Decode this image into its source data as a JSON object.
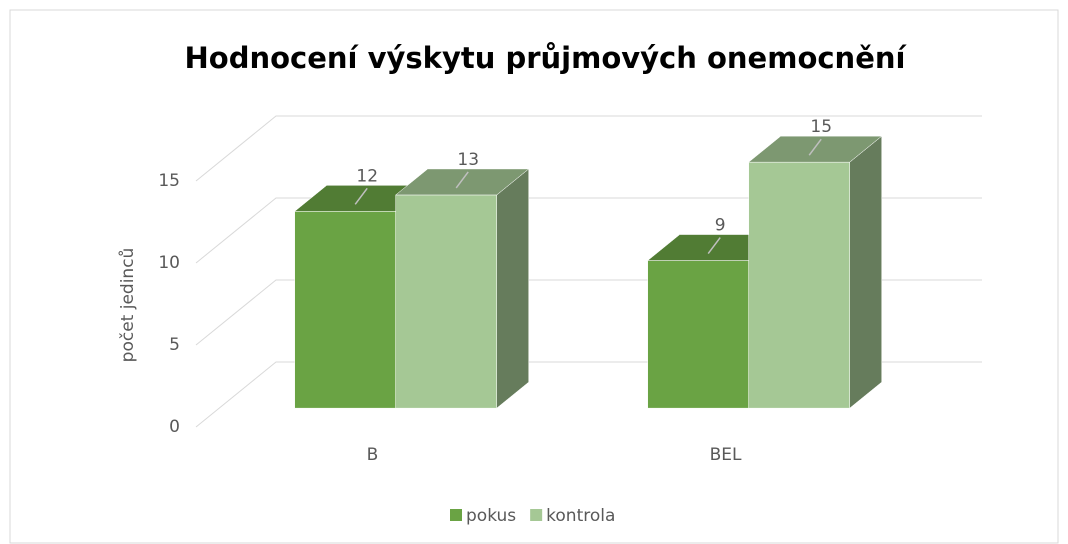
{
  "chart_data": {
    "type": "bar3d",
    "title": "Hodnocení výskytu průjmových onemocnění",
    "y_label": "počet jedinců",
    "categories": [
      "B",
      "BEL"
    ],
    "series": [
      {
        "name": "pokus",
        "color": "#6aa344",
        "values": [
          12,
          9
        ]
      },
      {
        "name": "kontrola",
        "color": "#a5c895",
        "values": [
          13,
          15
        ]
      }
    ],
    "ylim": [
      0,
      15
    ],
    "yticks": [
      0,
      5,
      10,
      15
    ],
    "grid": true,
    "legend": "bottom"
  }
}
